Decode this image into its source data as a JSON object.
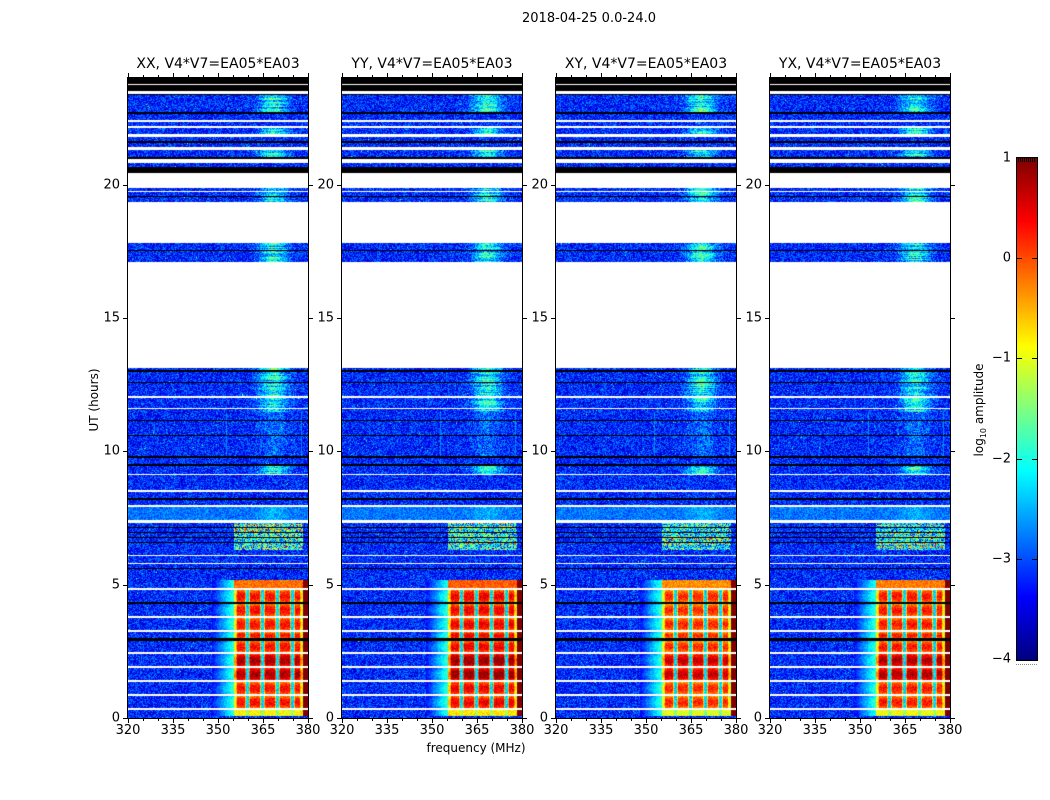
{
  "figure": {
    "title": "2018-04-25 0.0-24.0"
  },
  "panels": [
    {
      "title": "XX, V4*V7=EA05*EA03"
    },
    {
      "title": "YY, V4*V7=EA05*EA03"
    },
    {
      "title": "XY, V4*V7=EA05*EA03"
    },
    {
      "title": "YX, V4*V7=EA05*EA03"
    }
  ],
  "axes": {
    "xlabel": "frequency (MHz)",
    "ylabel": "UT (hours)",
    "xticks": [
      320,
      335,
      350,
      365,
      380
    ],
    "yticks": [
      0,
      5,
      10,
      15,
      20
    ],
    "xlim": [
      320,
      380
    ],
    "ylim": [
      0,
      24
    ]
  },
  "colorbar": {
    "label_prefix": "log",
    "label_sub": "10",
    "label_suffix": " amplitude",
    "ticks": [
      1,
      0,
      -1,
      -2,
      -3,
      -4
    ],
    "vmin": -4,
    "vmax": 1,
    "colormap": "jet"
  },
  "chart_data": {
    "type": "heatmap",
    "title": "2018-04-25 0.0-24.0",
    "subplot_titles": [
      "XX, V4*V7=EA05*EA03",
      "YY, V4*V7=EA05*EA03",
      "XY, V4*V7=EA05*EA03",
      "YX, V4*V7=EA05*EA03"
    ],
    "xlabel": "frequency (MHz)",
    "ylabel": "UT (hours)",
    "xlim": [
      320,
      380
    ],
    "ylim": [
      0,
      24
    ],
    "xticks": [
      320,
      335,
      350,
      365,
      380
    ],
    "yticks": [
      0,
      5,
      10,
      15,
      20
    ],
    "colorbar": {
      "label": "log10 amplitude",
      "ticks": [
        1,
        0,
        -1,
        -2,
        -3,
        -4
      ],
      "range": [
        -4,
        1
      ],
      "colormap": "jet"
    },
    "background_level_log10": [
      -3.8,
      -2.6
    ],
    "rfi_enhanced_band_mhz": [
      356,
      378
    ],
    "bright_emission": {
      "ut_range": [
        0,
        5.2
      ],
      "freq_range_mhz": [
        355.3,
        378
      ],
      "peak_log10_amplitude": 0.8,
      "column_gap_centers_mhz": [
        359.7,
        364.7,
        369.7,
        374.7
      ],
      "left_glow_freq_mhz": [
        348,
        355.3
      ]
    },
    "panel_gain_offsets": [
      0,
      0.1,
      -0.15,
      -0.05
    ],
    "time_segments": [
      [
        24,
        23.775,
        "black"
      ],
      [
        23.775,
        23.738,
        "white"
      ],
      [
        23.738,
        23.513,
        "black"
      ],
      [
        23.513,
        23.4,
        "white"
      ],
      [
        23.4,
        23.363,
        "black"
      ],
      [
        23.363,
        22.725,
        "noiseB"
      ],
      [
        22.725,
        22.65,
        "black"
      ],
      [
        22.65,
        22.425,
        "noise"
      ],
      [
        22.425,
        22.35,
        "white"
      ],
      [
        22.35,
        22.2,
        "noise"
      ],
      [
        22.2,
        22.125,
        "white"
      ],
      [
        22.125,
        21.9,
        "noiseB"
      ],
      [
        21.9,
        21.788,
        "white"
      ],
      [
        21.788,
        21.638,
        "noise"
      ],
      [
        21.638,
        21.563,
        "black"
      ],
      [
        21.563,
        21.413,
        "noise"
      ],
      [
        21.413,
        21.3,
        "white"
      ],
      [
        21.3,
        21.038,
        "noiseB"
      ],
      [
        21.038,
        20.963,
        "black"
      ],
      [
        20.963,
        20.813,
        "white"
      ],
      [
        20.813,
        20.663,
        "noise"
      ],
      [
        20.663,
        20.438,
        "black"
      ],
      [
        20.438,
        19.875,
        "white"
      ],
      [
        19.875,
        19.763,
        "noiseB"
      ],
      [
        19.763,
        19.725,
        "white"
      ],
      [
        19.725,
        19.575,
        "noiseB"
      ],
      [
        19.575,
        19.538,
        "black"
      ],
      [
        19.538,
        19.35,
        "noiseB"
      ],
      [
        19.35,
        17.813,
        "white"
      ],
      [
        17.813,
        17.55,
        "noiseB"
      ],
      [
        17.55,
        17.513,
        "black"
      ],
      [
        17.513,
        17.1,
        "noiseB"
      ],
      [
        17.1,
        13.125,
        "white"
      ],
      [
        13.125,
        13.05,
        "noiseB"
      ],
      [
        13.05,
        12.975,
        "black"
      ],
      [
        12.975,
        12.6,
        "noiseB"
      ],
      [
        12.6,
        12.563,
        "black"
      ],
      [
        12.563,
        12.075,
        "noiseB"
      ],
      [
        12.075,
        12.0,
        "white"
      ],
      [
        12.0,
        11.625,
        "noiseB"
      ],
      [
        11.625,
        11.588,
        "white"
      ],
      [
        11.588,
        11.475,
        "noiseB"
      ],
      [
        11.475,
        11.175,
        "noiseV"
      ],
      [
        11.175,
        11.138,
        "black"
      ],
      [
        11.138,
        10.613,
        "noiseV"
      ],
      [
        10.613,
        10.575,
        "black"
      ],
      [
        10.575,
        9.825,
        "noiseV"
      ],
      [
        9.825,
        9.75,
        "black"
      ],
      [
        9.75,
        9.525,
        "noise"
      ],
      [
        9.525,
        9.45,
        "black"
      ],
      [
        9.45,
        9.15,
        "noiseB"
      ],
      [
        9.15,
        9.113,
        "white"
      ],
      [
        9.113,
        8.55,
        "noise"
      ],
      [
        8.55,
        8.475,
        "white"
      ],
      [
        8.475,
        8.25,
        "noise"
      ],
      [
        8.25,
        8.175,
        "black"
      ],
      [
        8.175,
        7.988,
        "noise"
      ],
      [
        7.988,
        7.913,
        "white"
      ],
      [
        7.913,
        7.425,
        "light"
      ],
      [
        7.425,
        7.313,
        "white"
      ],
      [
        7.313,
        7.163,
        "stripesB"
      ],
      [
        7.163,
        7.125,
        "black"
      ],
      [
        7.125,
        6.975,
        "stripesB"
      ],
      [
        6.975,
        6.938,
        "black"
      ],
      [
        6.938,
        6.788,
        "stripesB"
      ],
      [
        6.788,
        6.75,
        "black"
      ],
      [
        6.75,
        6.6,
        "stripesB"
      ],
      [
        6.6,
        6.563,
        "black"
      ],
      [
        6.563,
        6.3,
        "stripesB"
      ],
      [
        6.3,
        6.113,
        "noise"
      ],
      [
        6.113,
        6.075,
        "white"
      ],
      [
        6.075,
        5.813,
        "noise"
      ],
      [
        5.813,
        5.775,
        "white"
      ],
      [
        5.775,
        5.625,
        "noise"
      ],
      [
        5.625,
        5.588,
        "black"
      ],
      [
        5.588,
        5.175,
        "noise"
      ],
      [
        5.175,
        4.875,
        "band"
      ],
      [
        4.875,
        4.8,
        "white"
      ],
      [
        4.8,
        4.35,
        "blocks"
      ],
      [
        4.35,
        4.275,
        "black"
      ],
      [
        4.275,
        3.825,
        "blocks"
      ],
      [
        3.825,
        3.75,
        "white"
      ],
      [
        3.75,
        3.3,
        "blocks"
      ],
      [
        3.3,
        3.225,
        "white"
      ],
      [
        3.225,
        3.0,
        "blocks"
      ],
      [
        3.0,
        2.888,
        "black"
      ],
      [
        2.888,
        2.475,
        "blocks"
      ],
      [
        2.475,
        2.4,
        "white"
      ],
      [
        2.4,
        1.95,
        "blocks2"
      ],
      [
        1.95,
        1.875,
        "white"
      ],
      [
        1.875,
        1.425,
        "blocks2"
      ],
      [
        1.425,
        1.35,
        "white"
      ],
      [
        1.35,
        0.9,
        "blocks"
      ],
      [
        0.9,
        0.825,
        "white"
      ],
      [
        0.825,
        0.375,
        "blocks"
      ],
      [
        0.375,
        0.3,
        "white"
      ],
      [
        0.3,
        0.075,
        "bandYG"
      ],
      [
        0.075,
        0,
        "noise"
      ]
    ]
  }
}
